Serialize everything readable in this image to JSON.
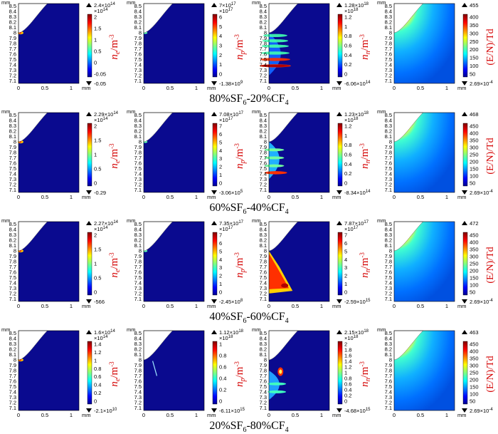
{
  "row_labels": [
    {
      "a": "80%SF",
      "b": "6",
      "c": "-20%CF",
      "d": "4"
    },
    {
      "a": "60%SF",
      "b": "6",
      "c": "-40%CF",
      "d": "4"
    },
    {
      "a": "40%SF",
      "b": "6",
      "c": "-60%CF",
      "d": "4"
    },
    {
      "a": "20%SF",
      "b": "6",
      "c": "-80%CF",
      "d": "4"
    }
  ],
  "axes": {
    "unit": "mm",
    "y_ticks": [
      "8.5",
      "8.4",
      "8.3",
      "8.2",
      "8.1",
      "8",
      "7.9",
      "7.8",
      "7.7",
      "7.6",
      "7.5",
      "7.4",
      "7.3",
      "7.2",
      "7.1"
    ],
    "x_ticks": [
      "0",
      "0.5",
      "1"
    ],
    "x_unit": "mm"
  },
  "quantities": {
    "ne": {
      "label": "n",
      "sub": "e",
      "unit": "/m",
      "sup": "-3"
    },
    "np": {
      "label": "n",
      "sub": "p",
      "unit": "/m",
      "sup": "-3"
    },
    "nn": {
      "label": "n",
      "sub": "n",
      "unit": "/m",
      "sup": "-3"
    },
    "EN": {
      "label": "(E/N)/Td"
    }
  },
  "panels": [
    [
      {
        "max": "2.4×10^14",
        "exp": "×10^14",
        "ticks": [
          "2",
          "1.5",
          "1",
          "0.5",
          "0",
          "-0.05"
        ],
        "min": "-0.05"
      },
      {
        "max": "7×10^17",
        "exp": "×10^17",
        "ticks": [
          "6",
          "5",
          "4",
          "3",
          "2",
          "1",
          "0"
        ],
        "min": "-1.38×10^9"
      },
      {
        "max": "1.28×10^18",
        "exp": "×10^18",
        "ticks": [
          "1.2",
          "1",
          "0.8",
          "0.6",
          "0.4",
          "0.2",
          "0"
        ],
        "min": "-6.06×10^14"
      },
      {
        "max": "455",
        "exp": "",
        "ticks": [
          "400",
          "350",
          "300",
          "250",
          "200",
          "150",
          "100",
          "50"
        ],
        "min": "2.69×10^-4"
      }
    ],
    [
      {
        "max": "2.29×10^14",
        "exp": "×10^14",
        "ticks": [
          "2",
          "1.5",
          "1",
          "0.5",
          "0"
        ],
        "min": "-0.29"
      },
      {
        "max": "7.08×10^17",
        "exp": "×10^17",
        "ticks": [
          "7",
          "6",
          "5",
          "4",
          "3",
          "2",
          "1",
          "0"
        ],
        "min": "-3.06×10^5"
      },
      {
        "max": "1.23×10^18",
        "exp": "×10^18",
        "ticks": [
          "1.2",
          "1",
          "0.8",
          "0.6",
          "0.4",
          "0.2",
          "0"
        ],
        "min": "-8.34×10^14"
      },
      {
        "max": "468",
        "exp": "",
        "ticks": [
          "450",
          "400",
          "350",
          "300",
          "250",
          "200",
          "150",
          "100",
          "50"
        ],
        "min": "2.69×10^-4"
      }
    ],
    [
      {
        "max": "2.27×10^14",
        "exp": "×10^14",
        "ticks": [
          "2",
          "1.5",
          "1",
          "0.5",
          "0"
        ],
        "min": "-566"
      },
      {
        "max": "7.35×10^17",
        "exp": "×10^17",
        "ticks": [
          "7",
          "6",
          "5",
          "4",
          "3",
          "2",
          "1",
          "0"
        ],
        "min": "-2.45×10^8"
      },
      {
        "max": "7.87×10^17",
        "exp": "×10^17",
        "ticks": [
          "7",
          "6",
          "5",
          "4",
          "3",
          "2",
          "1",
          "0"
        ],
        "min": "-2.59×10^15"
      },
      {
        "max": "472",
        "exp": "",
        "ticks": [
          "450",
          "400",
          "350",
          "300",
          "250",
          "200",
          "150",
          "100",
          "50"
        ],
        "min": "2.69×10^-4"
      }
    ],
    [
      {
        "max": "1.6×10^14",
        "exp": "×10^14",
        "ticks": [
          "1.4",
          "1.2",
          "1",
          "0.8",
          "0.6",
          "0.4",
          "0.2",
          "0"
        ],
        "min": "-2.1×10^10"
      },
      {
        "max": "1.12×10^18",
        "exp": "×10^18",
        "ticks": [
          "1",
          "0.8",
          "0.6",
          "0.4",
          "0.2",
          "0"
        ],
        "min": "-6.11×10^15"
      },
      {
        "max": "2.15×10^18",
        "exp": "×10^18",
        "ticks": [
          "2",
          "1.8",
          "1.6",
          "1.4",
          "1.2",
          "1",
          "0.8",
          "0.6",
          "0.4",
          "0.2",
          "0"
        ],
        "min": "-4.68×10^15"
      },
      {
        "max": "463",
        "exp": "",
        "ticks": [
          "450",
          "400",
          "350",
          "300",
          "250",
          "200",
          "150",
          "100",
          "50"
        ],
        "min": "2.69×10^-4"
      }
    ]
  ]
}
